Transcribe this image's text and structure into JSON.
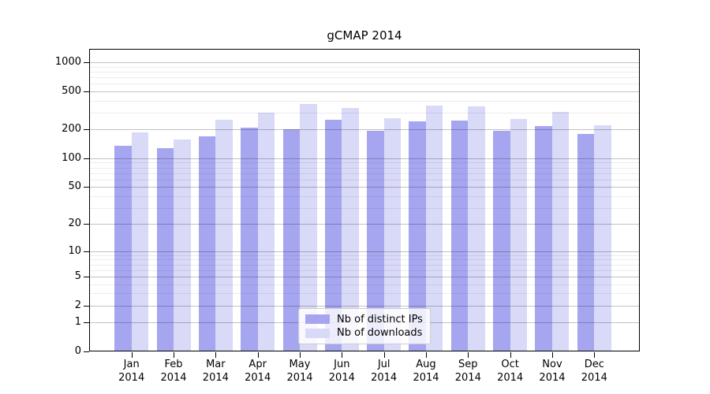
{
  "title": "gCMAP 2014",
  "chart_data": {
    "type": "bar",
    "title": "gCMAP 2014",
    "xlabel": "",
    "ylabel": "",
    "yscale": "log1p",
    "ylim": [
      0,
      1380
    ],
    "grid": "horizontal",
    "yticks": [
      0,
      1,
      2,
      5,
      10,
      20,
      50,
      100,
      200,
      500,
      1000
    ],
    "yminorticks": [
      3,
      4,
      6,
      7,
      8,
      9,
      30,
      40,
      60,
      70,
      80,
      90,
      300,
      400,
      600,
      700,
      800,
      900
    ],
    "categories": [
      "Jan",
      "Feb",
      "Mar",
      "Apr",
      "May",
      "Jun",
      "Jul",
      "Aug",
      "Sep",
      "Oct",
      "Nov",
      "Dec"
    ],
    "year": "2014",
    "series": [
      {
        "name": "Nb of distinct IPs",
        "color": "#a6a6f0",
        "values": [
          135,
          128,
          170,
          210,
          200,
          250,
          192,
          245,
          248,
          195,
          215,
          178
        ]
      },
      {
        "name": "Nb of downloads",
        "color": "#d9d9f8",
        "values": [
          185,
          158,
          250,
          300,
          370,
          335,
          262,
          355,
          345,
          255,
          305,
          220
        ]
      }
    ],
    "legend": {
      "position": "lower center",
      "entries": [
        "Nb of distinct IPs",
        "Nb of downloads"
      ]
    },
    "colors": {
      "grid_major": "rgba(0,0,0,0.24)",
      "grid_minor": "rgba(0,0,0,0.07)",
      "spine": "#000000",
      "background": "#ffffff"
    }
  }
}
